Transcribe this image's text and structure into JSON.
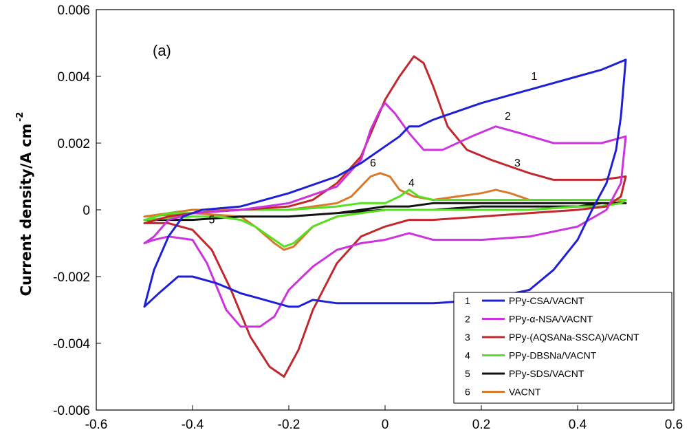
{
  "chart_data": {
    "type": "line",
    "title": "",
    "panel_label": "(a)",
    "xlabel": "",
    "ylabel": "Current density/A cm",
    "ylabel_superscript": "-2",
    "xlim": [
      -0.6,
      0.6
    ],
    "ylim": [
      -0.006,
      0.006
    ],
    "x_ticks": [
      -0.6,
      -0.4,
      -0.2,
      0,
      0.2,
      0.4,
      0.6
    ],
    "x_tick_labels": [
      "-0.6",
      "-0.4",
      "-0.2",
      "0",
      "0.2",
      "0.4",
      "0.6"
    ],
    "y_ticks": [
      -0.006,
      -0.004,
      -0.002,
      0,
      0.002,
      0.004,
      0.006
    ],
    "y_tick_labels": [
      "-0.006",
      "-0.004",
      "-0.002",
      "0",
      "0.002",
      "0.004",
      "0.006"
    ],
    "grid": false,
    "legend_position": "bottom-right",
    "series": [
      {
        "name": "PPy-CSA/VACNT",
        "number": "1",
        "color": "#1f1fd6",
        "points": [
          [
            -0.5,
            -0.0029
          ],
          [
            -0.48,
            -0.0018
          ],
          [
            -0.45,
            -0.0008
          ],
          [
            -0.42,
            -0.0002
          ],
          [
            -0.38,
            0.0
          ],
          [
            -0.3,
            0.0001
          ],
          [
            -0.2,
            0.0005
          ],
          [
            -0.1,
            0.001
          ],
          [
            -0.05,
            0.0014
          ],
          [
            0.0,
            0.0019
          ],
          [
            0.03,
            0.0022
          ],
          [
            0.05,
            0.0025
          ],
          [
            0.07,
            0.0025
          ],
          [
            0.1,
            0.0027
          ],
          [
            0.2,
            0.0032
          ],
          [
            0.3,
            0.0036
          ],
          [
            0.4,
            0.004
          ],
          [
            0.45,
            0.0042
          ],
          [
            0.5,
            0.0045
          ],
          [
            0.49,
            0.0028
          ],
          [
            0.48,
            0.0018
          ],
          [
            0.46,
            0.0008
          ],
          [
            0.43,
            0.0
          ],
          [
            0.4,
            -0.0009
          ],
          [
            0.35,
            -0.0018
          ],
          [
            0.3,
            -0.0024
          ],
          [
            0.2,
            -0.0027
          ],
          [
            0.1,
            -0.0028
          ],
          [
            0.0,
            -0.0028
          ],
          [
            -0.1,
            -0.0028
          ],
          [
            -0.15,
            -0.0027
          ],
          [
            -0.18,
            -0.0029
          ],
          [
            -0.2,
            -0.0029
          ],
          [
            -0.25,
            -0.0027
          ],
          [
            -0.3,
            -0.0025
          ],
          [
            -0.35,
            -0.0022
          ],
          [
            -0.4,
            -0.002
          ],
          [
            -0.43,
            -0.002
          ],
          [
            -0.47,
            -0.0025
          ],
          [
            -0.5,
            -0.0029
          ]
        ]
      },
      {
        "name": "PPy-α-NSA/VACNT",
        "number": "2",
        "color": "#cc33dd",
        "points": [
          [
            -0.5,
            -0.001
          ],
          [
            -0.48,
            -0.0008
          ],
          [
            -0.45,
            -0.0003
          ],
          [
            -0.4,
            -0.0001
          ],
          [
            -0.3,
            0.0
          ],
          [
            -0.2,
            0.0002
          ],
          [
            -0.1,
            0.0007
          ],
          [
            -0.05,
            0.0015
          ],
          [
            -0.03,
            0.0024
          ],
          [
            -0.01,
            0.003
          ],
          [
            0.0,
            0.0032
          ],
          [
            0.02,
            0.0029
          ],
          [
            0.05,
            0.0023
          ],
          [
            0.08,
            0.0018
          ],
          [
            0.12,
            0.0018
          ],
          [
            0.18,
            0.0022
          ],
          [
            0.23,
            0.0025
          ],
          [
            0.28,
            0.0023
          ],
          [
            0.35,
            0.002
          ],
          [
            0.45,
            0.002
          ],
          [
            0.5,
            0.0022
          ],
          [
            0.49,
            0.0008
          ],
          [
            0.46,
            0.0
          ],
          [
            0.4,
            -0.0005
          ],
          [
            0.3,
            -0.0008
          ],
          [
            0.2,
            -0.0009
          ],
          [
            0.1,
            -0.0009
          ],
          [
            0.05,
            -0.0007
          ],
          [
            0.0,
            -0.0009
          ],
          [
            -0.05,
            -0.001
          ],
          [
            -0.1,
            -0.0012
          ],
          [
            -0.15,
            -0.0017
          ],
          [
            -0.2,
            -0.0024
          ],
          [
            -0.23,
            -0.0032
          ],
          [
            -0.26,
            -0.0035
          ],
          [
            -0.3,
            -0.0035
          ],
          [
            -0.33,
            -0.003
          ],
          [
            -0.37,
            -0.0016
          ],
          [
            -0.4,
            -0.0009
          ],
          [
            -0.45,
            -0.0008
          ],
          [
            -0.48,
            -0.0009
          ],
          [
            -0.5,
            -0.001
          ]
        ]
      },
      {
        "name": "PPy-(AQSANa-SSCA)/VACNT",
        "number": "3",
        "color": "#c0282d",
        "points": [
          [
            -0.5,
            -0.0004
          ],
          [
            -0.45,
            -0.0002
          ],
          [
            -0.4,
            -0.0001
          ],
          [
            -0.3,
            0.0
          ],
          [
            -0.2,
            0.0001
          ],
          [
            -0.15,
            0.0003
          ],
          [
            -0.1,
            0.0008
          ],
          [
            -0.05,
            0.0016
          ],
          [
            0.0,
            0.0033
          ],
          [
            0.03,
            0.004
          ],
          [
            0.06,
            0.0046
          ],
          [
            0.08,
            0.0044
          ],
          [
            0.1,
            0.0037
          ],
          [
            0.13,
            0.0025
          ],
          [
            0.17,
            0.0018
          ],
          [
            0.22,
            0.0015
          ],
          [
            0.3,
            0.0011
          ],
          [
            0.35,
            0.0009
          ],
          [
            0.45,
            0.0009
          ],
          [
            0.5,
            0.001
          ],
          [
            0.49,
            0.0004
          ],
          [
            0.46,
            0.0001
          ],
          [
            0.4,
            0.0
          ],
          [
            0.3,
            -0.0001
          ],
          [
            0.2,
            -0.0002
          ],
          [
            0.1,
            -0.0003
          ],
          [
            0.05,
            -0.0003
          ],
          [
            0.0,
            -0.0005
          ],
          [
            -0.05,
            -0.0008
          ],
          [
            -0.1,
            -0.0016
          ],
          [
            -0.15,
            -0.003
          ],
          [
            -0.18,
            -0.0042
          ],
          [
            -0.21,
            -0.005
          ],
          [
            -0.24,
            -0.0047
          ],
          [
            -0.28,
            -0.0038
          ],
          [
            -0.32,
            -0.0024
          ],
          [
            -0.36,
            -0.0012
          ],
          [
            -0.4,
            -0.0006
          ],
          [
            -0.45,
            -0.0004
          ],
          [
            -0.5,
            -0.0004
          ]
        ]
      },
      {
        "name": "PPy-DBSNa/VACNT",
        "number": "4",
        "color": "#55e020",
        "points": [
          [
            -0.5,
            -0.0003
          ],
          [
            -0.45,
            -0.0001
          ],
          [
            -0.4,
            -0.0001
          ],
          [
            -0.3,
            0.0
          ],
          [
            -0.2,
            0.0
          ],
          [
            -0.1,
            0.0001
          ],
          [
            -0.05,
            0.0002
          ],
          [
            0.0,
            0.0002
          ],
          [
            0.03,
            0.0004
          ],
          [
            0.05,
            0.0006
          ],
          [
            0.07,
            0.0004
          ],
          [
            0.1,
            0.0003
          ],
          [
            0.2,
            0.0003
          ],
          [
            0.3,
            0.0003
          ],
          [
            0.4,
            0.0003
          ],
          [
            0.5,
            0.0003
          ],
          [
            0.49,
            0.0002
          ],
          [
            0.45,
            0.0001
          ],
          [
            0.4,
            0.0001
          ],
          [
            0.3,
            0.0
          ],
          [
            0.2,
            0.0
          ],
          [
            0.1,
            0.0
          ],
          [
            0.0,
            0.0
          ],
          [
            -0.05,
            -0.0001
          ],
          [
            -0.1,
            -0.0002
          ],
          [
            -0.15,
            -0.0005
          ],
          [
            -0.19,
            -0.001
          ],
          [
            -0.21,
            -0.0011
          ],
          [
            -0.23,
            -0.0009
          ],
          [
            -0.27,
            -0.0005
          ],
          [
            -0.3,
            -0.0003
          ],
          [
            -0.35,
            -0.0002
          ],
          [
            -0.4,
            -0.0002
          ],
          [
            -0.5,
            -0.0003
          ]
        ]
      },
      {
        "name": "PPy-SDS/VACNT",
        "number": "5",
        "color": "#111111",
        "points": [
          [
            -0.5,
            -0.0003
          ],
          [
            -0.4,
            -0.0003
          ],
          [
            -0.3,
            -0.0002
          ],
          [
            -0.2,
            -0.0002
          ],
          [
            -0.1,
            -0.0001
          ],
          [
            -0.05,
            0.0
          ],
          [
            0.0,
            0.0001
          ],
          [
            0.05,
            0.0001
          ],
          [
            0.1,
            0.0002
          ],
          [
            0.2,
            0.0002
          ],
          [
            0.3,
            0.0002
          ],
          [
            0.4,
            0.0002
          ],
          [
            0.5,
            0.0002
          ],
          [
            0.45,
            0.0002
          ],
          [
            0.4,
            0.0001
          ],
          [
            0.3,
            0.0001
          ],
          [
            0.2,
            0.0001
          ],
          [
            0.1,
            0.0
          ],
          [
            0.0,
            0.0
          ],
          [
            -0.1,
            -0.0001
          ],
          [
            -0.2,
            -0.0002
          ],
          [
            -0.3,
            -0.0002
          ],
          [
            -0.4,
            -0.0003
          ],
          [
            -0.5,
            -0.0003
          ]
        ]
      },
      {
        "name": "VACNT",
        "number": "6",
        "color": "#d97a2b",
        "points": [
          [
            -0.5,
            -0.0002
          ],
          [
            -0.45,
            -0.0001
          ],
          [
            -0.4,
            0.0
          ],
          [
            -0.3,
            0.0
          ],
          [
            -0.2,
            0.0
          ],
          [
            -0.15,
            0.0001
          ],
          [
            -0.1,
            0.0002
          ],
          [
            -0.07,
            0.0004
          ],
          [
            -0.05,
            0.0007
          ],
          [
            -0.03,
            0.001
          ],
          [
            -0.01,
            0.0011
          ],
          [
            0.01,
            0.001
          ],
          [
            0.03,
            0.0006
          ],
          [
            0.06,
            0.0004
          ],
          [
            0.1,
            0.0003
          ],
          [
            0.15,
            0.0004
          ],
          [
            0.2,
            0.0005
          ],
          [
            0.23,
            0.0006
          ],
          [
            0.26,
            0.0005
          ],
          [
            0.3,
            0.0003
          ],
          [
            0.4,
            0.0003
          ],
          [
            0.5,
            0.0003
          ],
          [
            0.45,
            0.0001
          ],
          [
            0.4,
            0.0001
          ],
          [
            0.3,
            0.0
          ],
          [
            0.2,
            0.0
          ],
          [
            0.1,
            0.0
          ],
          [
            0.0,
            0.0
          ],
          [
            -0.05,
            -0.0001
          ],
          [
            -0.1,
            -0.0002
          ],
          [
            -0.15,
            -0.0005
          ],
          [
            -0.19,
            -0.0011
          ],
          [
            -0.21,
            -0.0012
          ],
          [
            -0.23,
            -0.001
          ],
          [
            -0.27,
            -0.0005
          ],
          [
            -0.3,
            -0.0002
          ],
          [
            -0.4,
            -0.0001
          ],
          [
            -0.5,
            -0.0002
          ]
        ]
      }
    ],
    "curve_annotations": [
      {
        "text": "1",
        "x": 0.31,
        "y": 0.0039
      },
      {
        "text": "2",
        "x": 0.255,
        "y": 0.0027
      },
      {
        "text": "3",
        "x": 0.275,
        "y": 0.0013
      },
      {
        "text": "6",
        "x": -0.025,
        "y": 0.0013
      },
      {
        "text": "4",
        "x": 0.055,
        "y": 0.0007
      },
      {
        "text": "5",
        "x": -0.36,
        "y": -0.0004
      }
    ]
  }
}
